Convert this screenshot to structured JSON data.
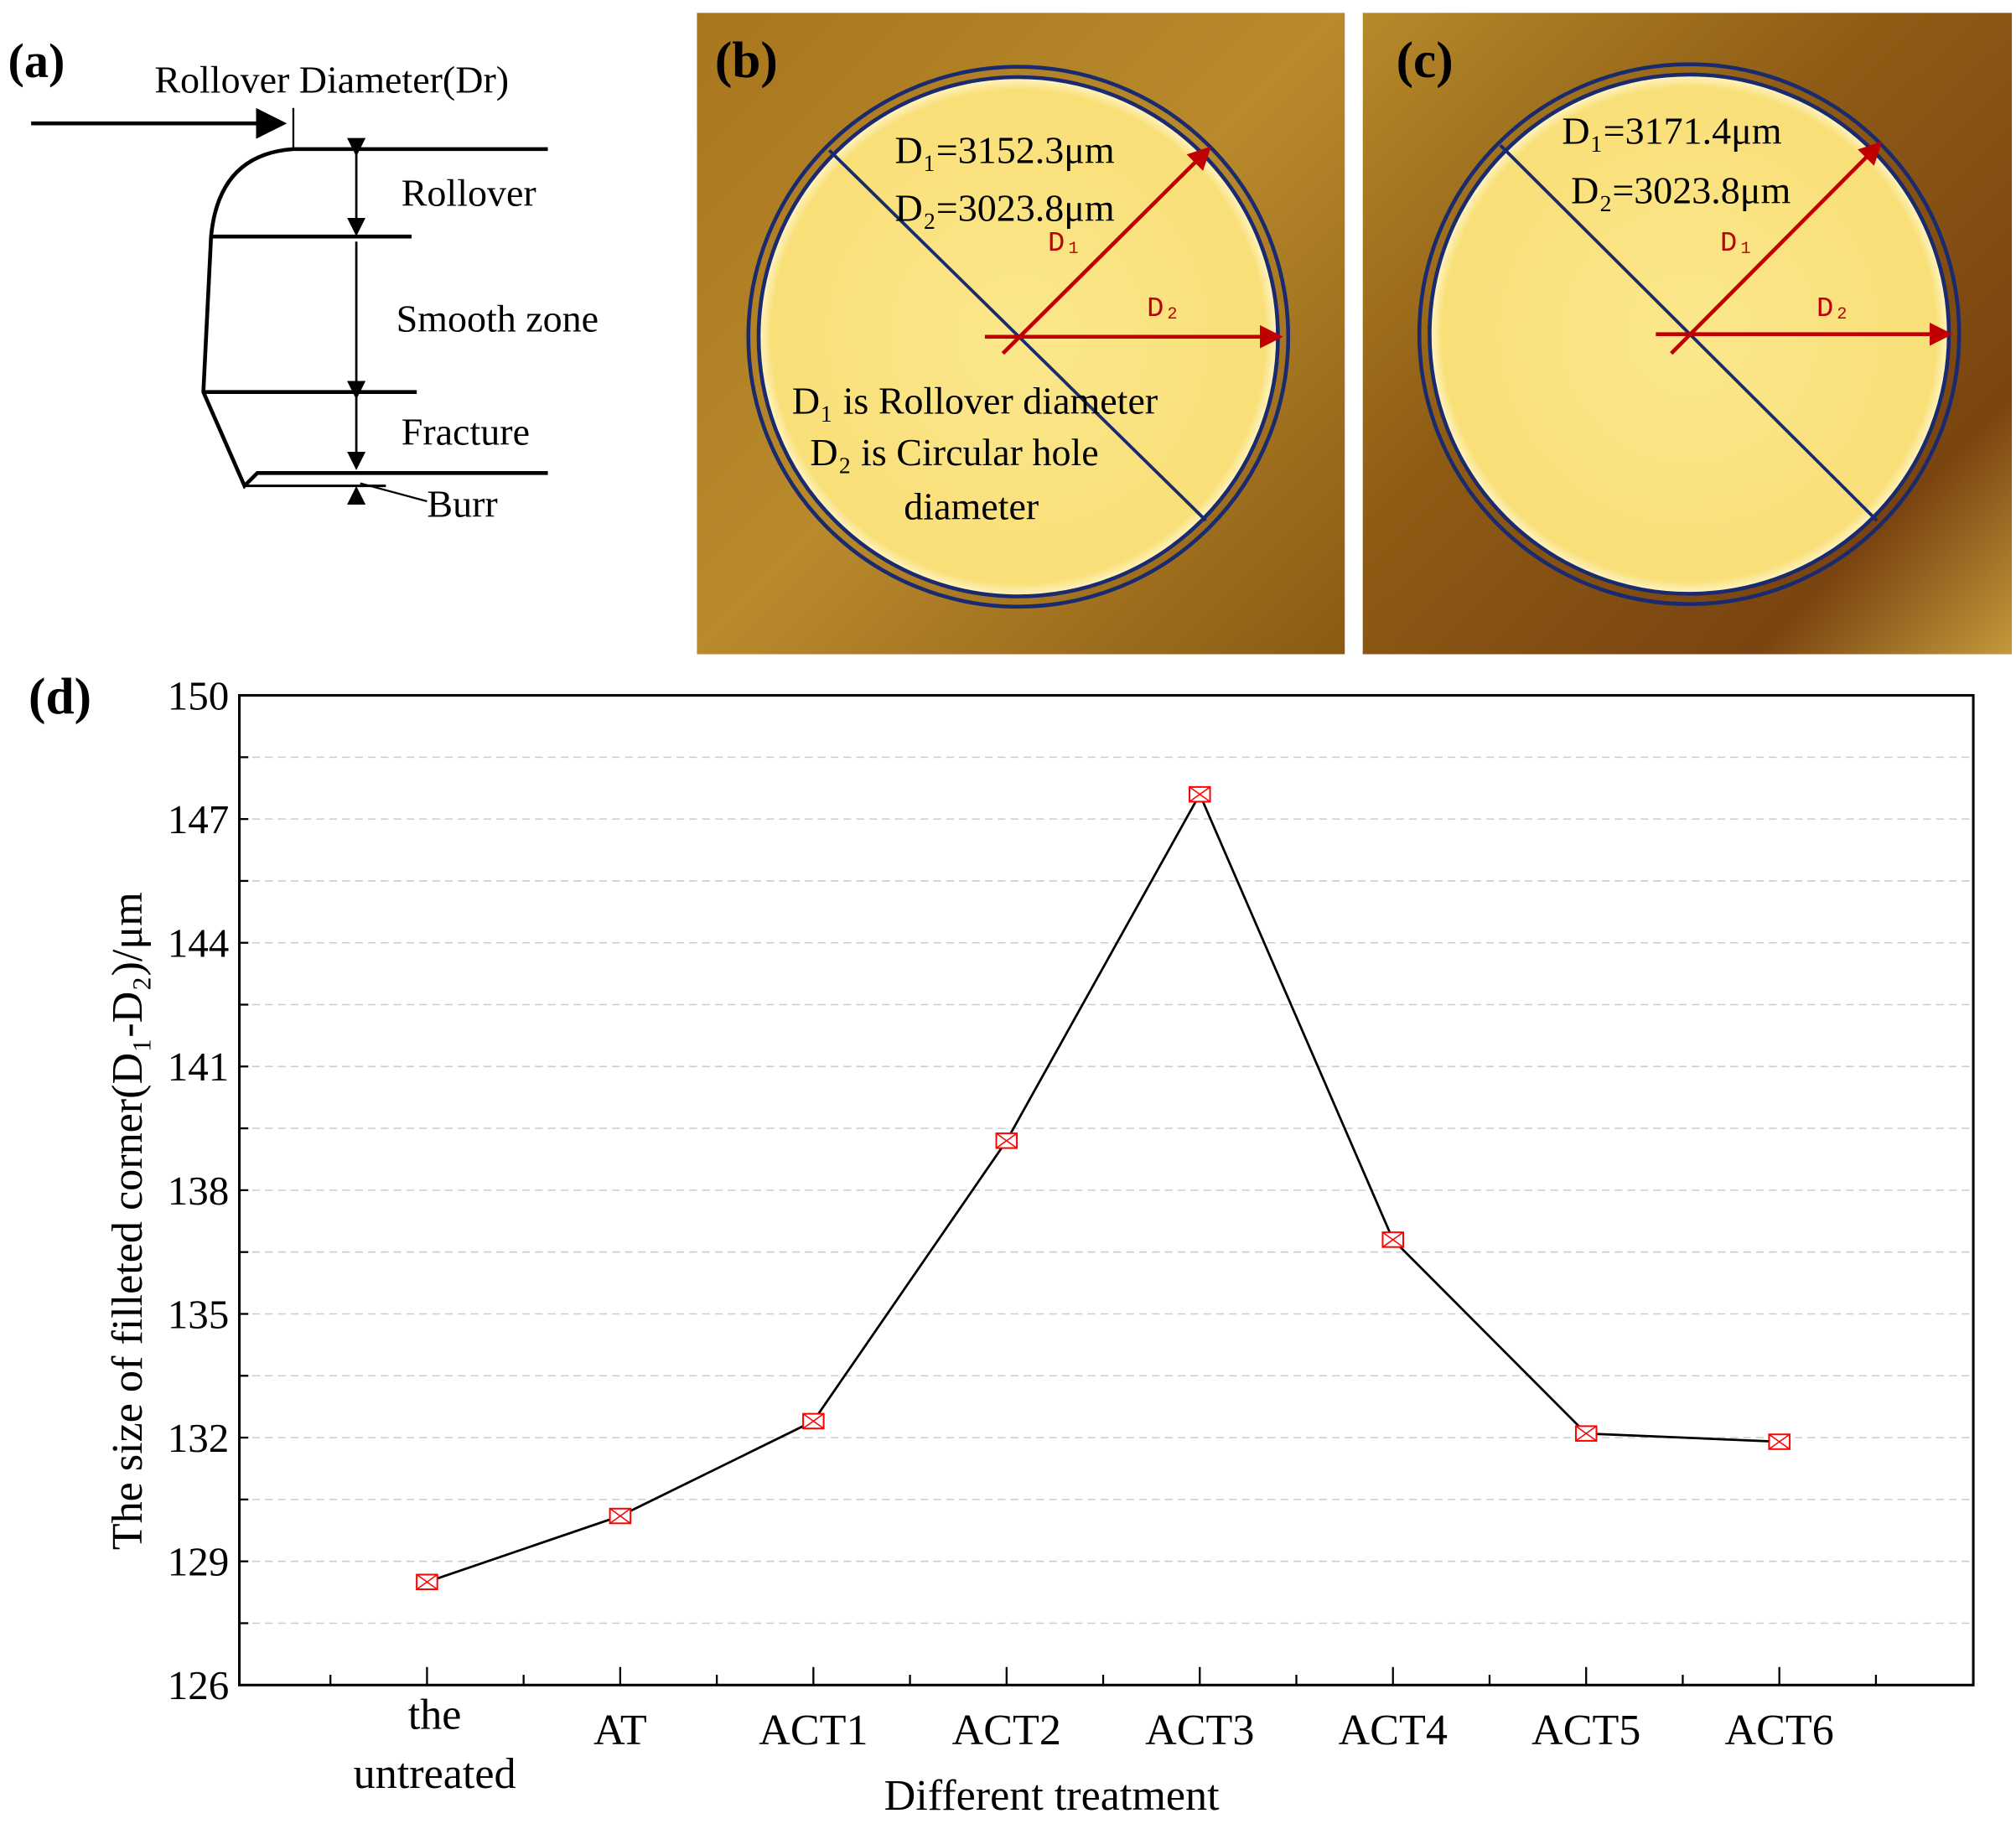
{
  "panel_a": {
    "label": "(a)",
    "title": "Rollover Diameter(Dr)",
    "zones": [
      "Rollover",
      "Smooth zone",
      "Fracture",
      "Burr"
    ]
  },
  "panel_b": {
    "label": "(b)",
    "d1_text": "D₁=3152.3μm",
    "d2_text": "D₂=3023.8μm",
    "arrow_d1": "D₁",
    "arrow_d2": "D₂",
    "note_line1": "D₁ is Rollover diameter",
    "note_line2": "D₂ is Circular hole",
    "note_line3": "diameter"
  },
  "panel_c": {
    "label": "(c)",
    "d1_text": "D₁=3171.4μm",
    "d2_text": "D₂=3023.8μm",
    "arrow_d1": "D₁",
    "arrow_d2": "D₂"
  },
  "colors": {
    "marker": "#ff0000",
    "line": "#000000",
    "arrow": "#c00000",
    "circle": "#1a2a6e"
  },
  "chart_data": {
    "panel_label": "(d)",
    "type": "line",
    "categories": [
      "the untreated",
      "AT",
      "ACT1",
      "ACT2",
      "ACT3",
      "ACT4",
      "ACT5",
      "ACT6"
    ],
    "category_lines": [
      [
        "the",
        "untreated"
      ],
      [
        "AT"
      ],
      [
        "ACT1"
      ],
      [
        "ACT2"
      ],
      [
        "ACT3"
      ],
      [
        "ACT4"
      ],
      [
        "ACT5"
      ],
      [
        "ACT6"
      ]
    ],
    "values": [
      128.5,
      130.1,
      132.4,
      139.2,
      147.6,
      136.8,
      132.1,
      131.9
    ],
    "xlabel": "Different treatment",
    "ylabel": "The size of filleted corner(D₁-D₂)/μm",
    "ylim": [
      126,
      150
    ],
    "yticks": [
      126,
      129,
      132,
      135,
      138,
      141,
      144,
      147,
      150
    ],
    "grid": true
  }
}
